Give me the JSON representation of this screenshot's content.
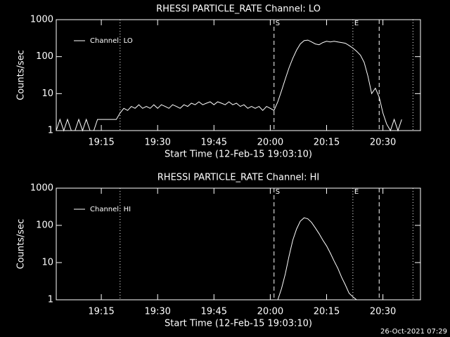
{
  "chart_data": [
    {
      "type": "line",
      "title": "RHESSI PARTICLE_RATE Channel: LO",
      "xlabel": "Start Time (12-Feb-15 19:03:10)",
      "ylabel": "Counts/sec",
      "ylog": true,
      "ylim": [
        1,
        1000
      ],
      "yticks": [
        1,
        10,
        100,
        1000
      ],
      "xlim": [
        "19:03",
        "20:40"
      ],
      "xticks": [
        "19:15",
        "19:30",
        "19:45",
        "20:00",
        "20:15",
        "20:30"
      ],
      "legend": "upper left",
      "vlines": [
        {
          "x": "19:20",
          "style": "dotted"
        },
        {
          "x": "20:01",
          "style": "dashed",
          "label": "S"
        },
        {
          "x": "20:22",
          "style": "dotted",
          "label": "E"
        },
        {
          "x": "20:29",
          "style": "dashed"
        },
        {
          "x": "20:38",
          "style": "dotted"
        }
      ],
      "x": [
        "19:03",
        "19:04",
        "19:05",
        "19:06",
        "19:07",
        "19:08",
        "19:09",
        "19:10",
        "19:11",
        "19:12",
        "19:13",
        "19:14",
        "19:15",
        "19:16",
        "19:17",
        "19:18",
        "19:19",
        "19:20",
        "19:21",
        "19:22",
        "19:23",
        "19:24",
        "19:25",
        "19:26",
        "19:27",
        "19:28",
        "19:29",
        "19:30",
        "19:31",
        "19:32",
        "19:33",
        "19:34",
        "19:35",
        "19:36",
        "19:37",
        "19:38",
        "19:39",
        "19:40",
        "19:41",
        "19:42",
        "19:43",
        "19:44",
        "19:45",
        "19:46",
        "19:47",
        "19:48",
        "19:49",
        "19:50",
        "19:51",
        "19:52",
        "19:53",
        "19:54",
        "19:55",
        "19:56",
        "19:57",
        "19:58",
        "19:59",
        "20:00",
        "20:01",
        "20:02",
        "20:03",
        "20:04",
        "20:05",
        "20:06",
        "20:07",
        "20:08",
        "20:09",
        "20:10",
        "20:11",
        "20:12",
        "20:13",
        "20:14",
        "20:15",
        "20:16",
        "20:17",
        "20:18",
        "20:19",
        "20:20",
        "20:21",
        "20:22",
        "20:23",
        "20:24",
        "20:25",
        "20:26",
        "20:27",
        "20:28",
        "20:29",
        "20:30",
        "20:31",
        "20:32",
        "20:33",
        "20:34",
        "20:35"
      ],
      "series": [
        {
          "name": "Channel: LO",
          "color": "#ffffff",
          "values": [
            1,
            2,
            1,
            2,
            1,
            1,
            2,
            1,
            2,
            1,
            1,
            2,
            2,
            2,
            2,
            2,
            2,
            3,
            4,
            3.5,
            4.5,
            4,
            5,
            4,
            4.5,
            4,
            5,
            4,
            5,
            4.5,
            4,
            5,
            4.5,
            4,
            5,
            4.5,
            5.5,
            5,
            6,
            5,
            5.5,
            6,
            5,
            6,
            5.5,
            5,
            6,
            5,
            5.5,
            4.5,
            5,
            4,
            4.5,
            4,
            4.5,
            3.5,
            4.5,
            4,
            3.5,
            6,
            12,
            25,
            50,
            90,
            150,
            220,
            270,
            280,
            250,
            220,
            210,
            240,
            260,
            250,
            260,
            250,
            240,
            230,
            200,
            170,
            140,
            110,
            70,
            30,
            10,
            14,
            8,
            3,
            1.5,
            1,
            2,
            1,
            2
          ]
        }
      ]
    },
    {
      "type": "line",
      "title": "RHESSI PARTICLE_RATE Channel: HI",
      "xlabel": "Start Time (12-Feb-15 19:03:10)",
      "ylabel": "Counts/sec",
      "ylog": true,
      "ylim": [
        1,
        1000
      ],
      "yticks": [
        1,
        10,
        100,
        1000
      ],
      "xlim": [
        "19:03",
        "20:40"
      ],
      "xticks": [
        "19:15",
        "19:30",
        "19:45",
        "20:00",
        "20:15",
        "20:30"
      ],
      "legend": "upper left",
      "vlines": [
        {
          "x": "19:20",
          "style": "dotted"
        },
        {
          "x": "20:01",
          "style": "dashed",
          "label": "S"
        },
        {
          "x": "20:22",
          "style": "dotted",
          "label": "E"
        },
        {
          "x": "20:29",
          "style": "dashed"
        },
        {
          "x": "20:38",
          "style": "dotted"
        }
      ],
      "x": [
        "20:02",
        "20:03",
        "20:04",
        "20:05",
        "20:06",
        "20:07",
        "20:08",
        "20:09",
        "20:10",
        "20:11",
        "20:12",
        "20:13",
        "20:14",
        "20:15",
        "20:16",
        "20:17",
        "20:18",
        "20:19",
        "20:20",
        "20:21",
        "20:22",
        "20:23"
      ],
      "series": [
        {
          "name": "Channel: HI",
          "color": "#ffffff",
          "values": [
            1,
            2,
            5,
            15,
            40,
            80,
            130,
            160,
            150,
            120,
            85,
            60,
            40,
            28,
            18,
            11,
            7,
            4,
            2.5,
            1.5,
            1.2,
            1
          ]
        }
      ]
    }
  ],
  "footer": "26-Oct-2021 07:29"
}
